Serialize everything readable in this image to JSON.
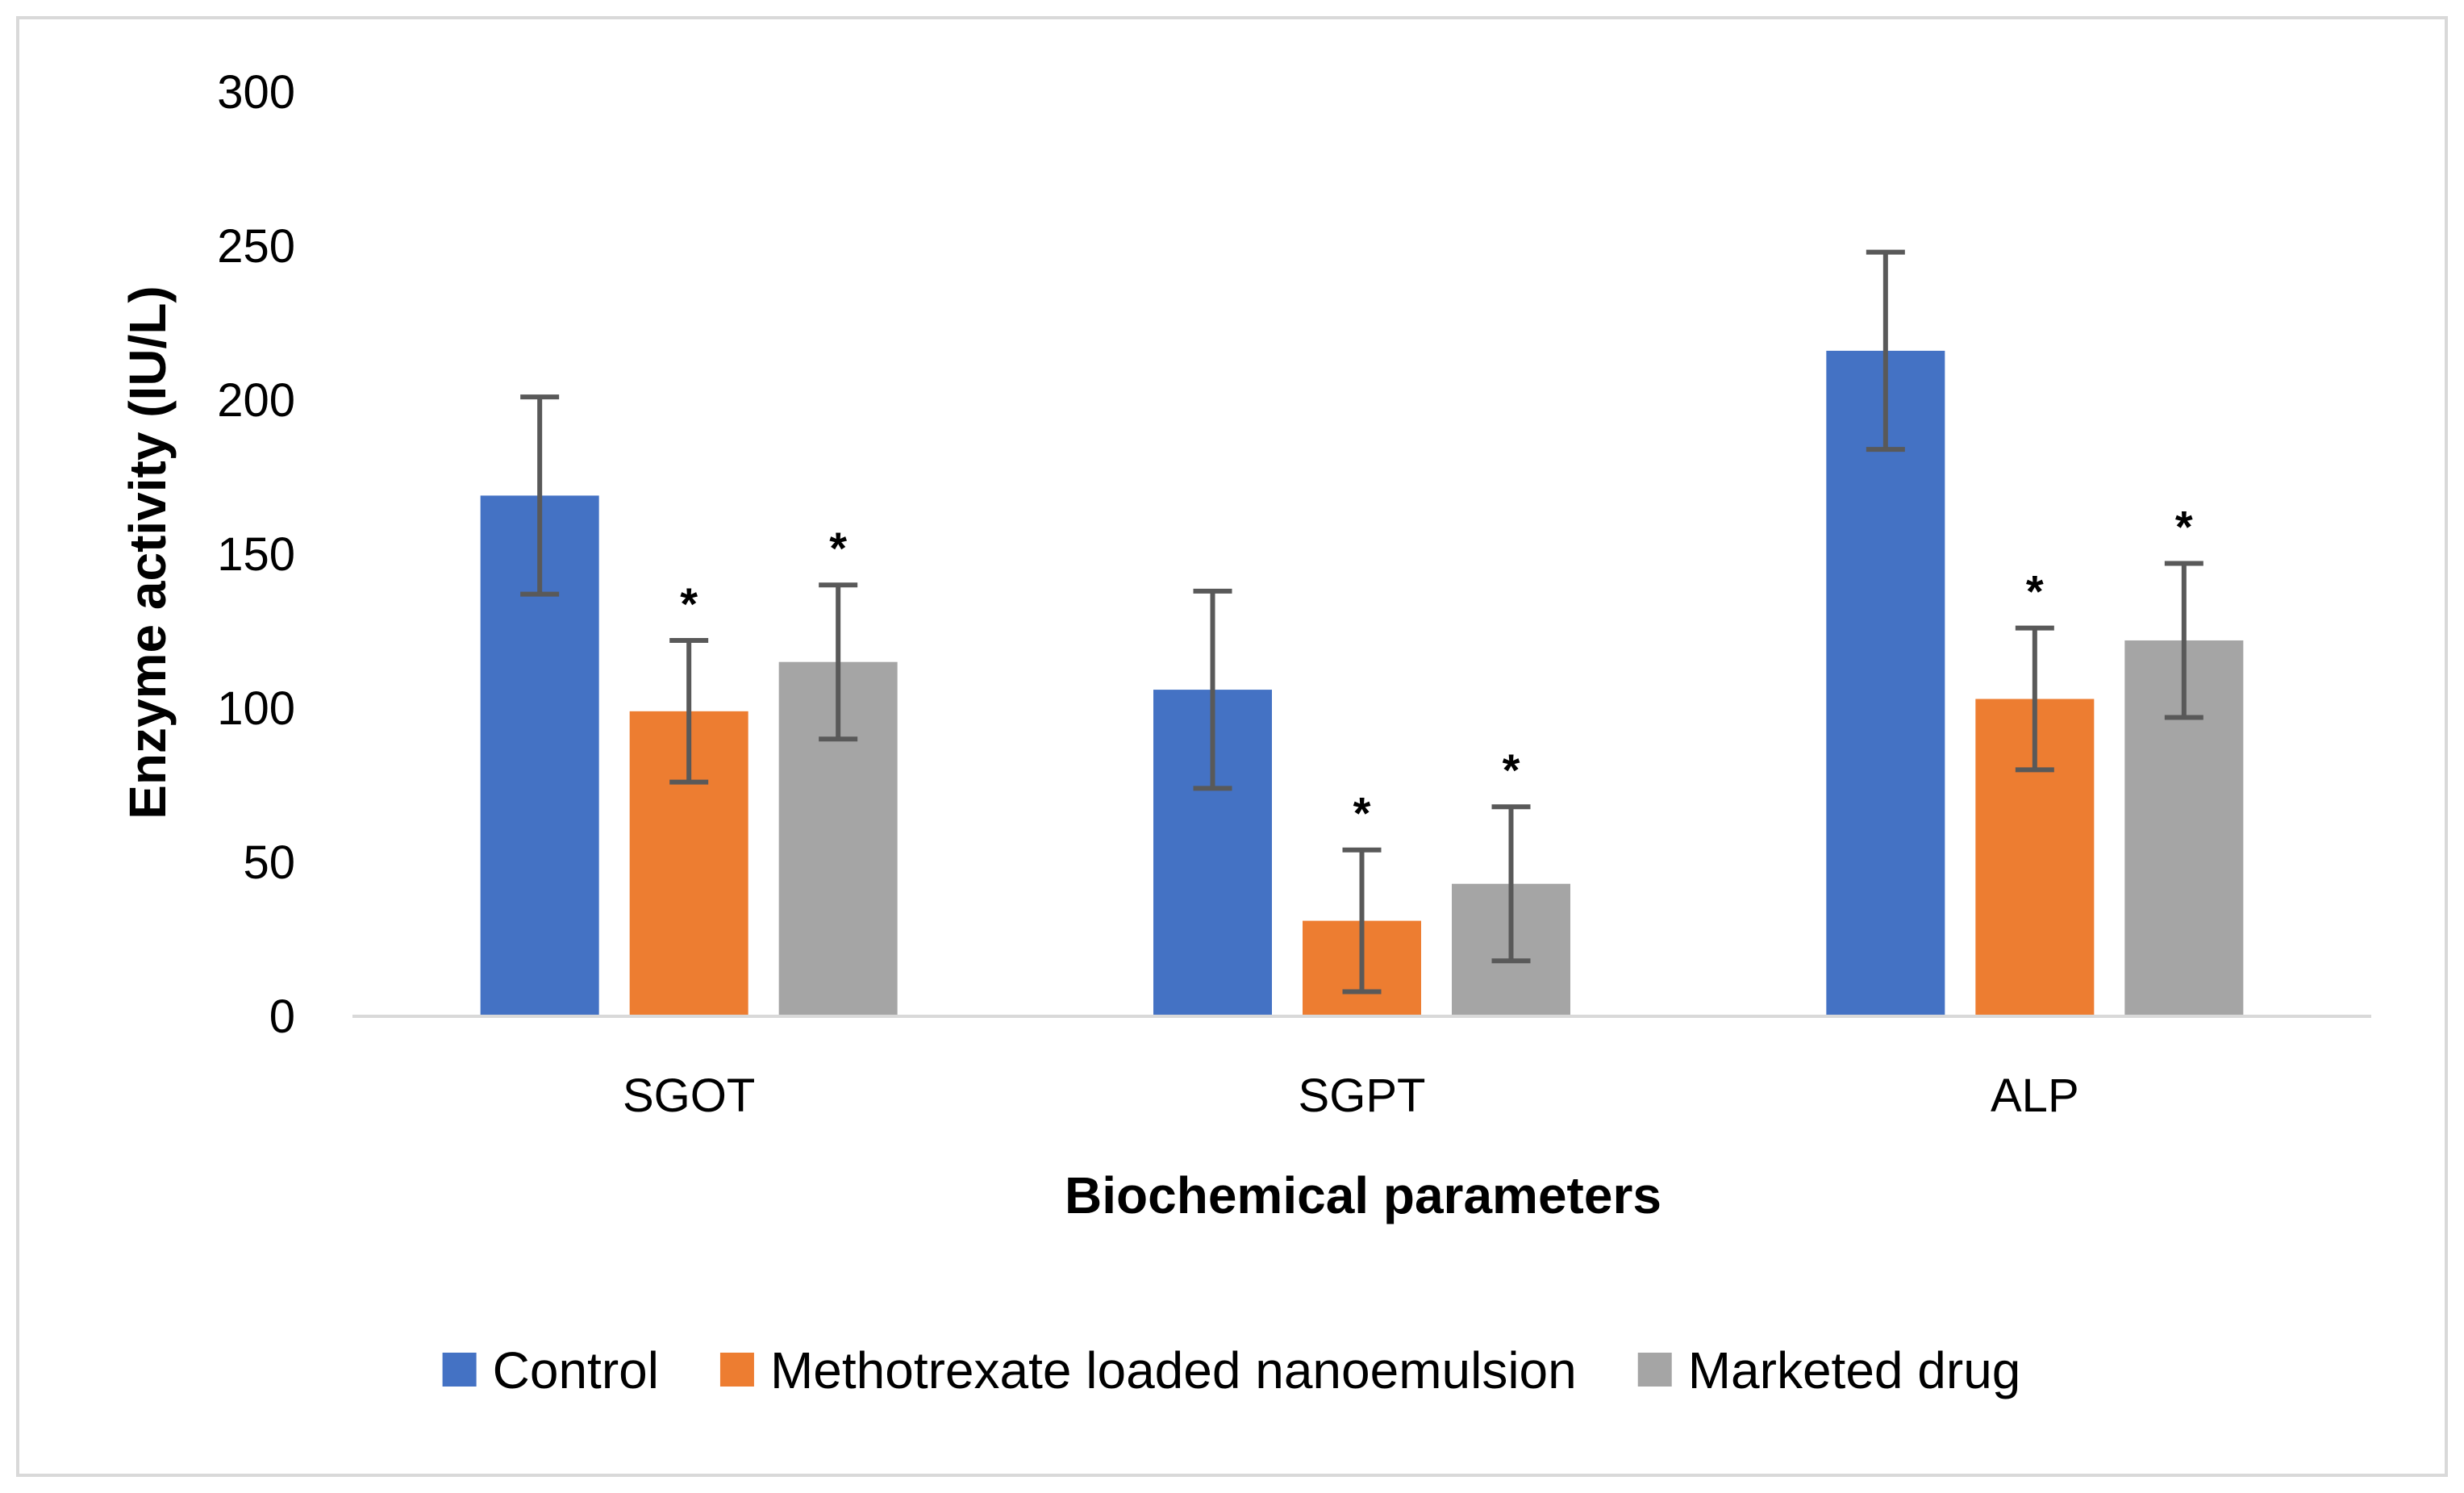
{
  "chart_data": {
    "type": "bar",
    "title": "",
    "xlabel": "Biochemical parameters",
    "ylabel": "Enzyme activity (IU/L)",
    "categories": [
      "SGOT",
      "SGPT",
      "ALP"
    ],
    "ylim": [
      0,
      300
    ],
    "yticks": [
      0,
      50,
      100,
      150,
      200,
      250,
      300
    ],
    "grid": false,
    "legend_position": "bottom",
    "significance_marker": "*",
    "series": [
      {
        "name": "Control",
        "color": "#4472C4",
        "values": [
          169,
          106,
          216
        ],
        "errors": [
          32,
          32,
          32
        ],
        "significant": [
          false,
          false,
          false
        ]
      },
      {
        "name": "Methotrexate loaded nanoemulsion",
        "color": "#ED7D31",
        "values": [
          99,
          31,
          103
        ],
        "errors": [
          23,
          23,
          23
        ],
        "significant": [
          true,
          true,
          true
        ]
      },
      {
        "name": "Marketed drug",
        "color": "#A5A5A5",
        "values": [
          115,
          43,
          122
        ],
        "errors": [
          25,
          25,
          25
        ],
        "significant": [
          true,
          true,
          true
        ]
      }
    ]
  }
}
